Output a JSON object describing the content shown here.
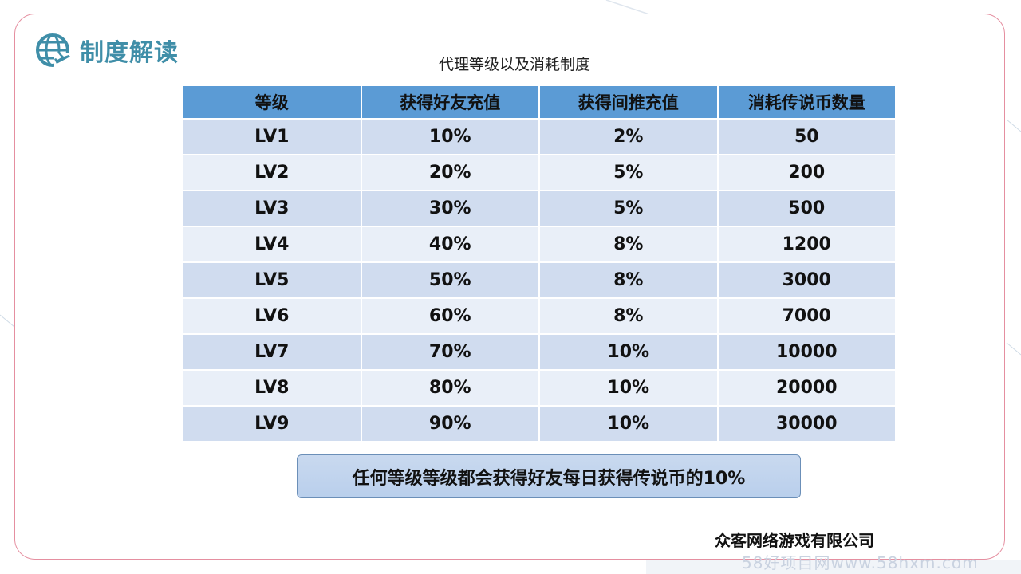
{
  "header": {
    "section_title": "制度解读",
    "icon": "globe-plane-icon"
  },
  "table": {
    "caption": "代理等级以及消耗制度",
    "headers": [
      "等级",
      "获得好友充值",
      "获得间推充值",
      "消耗传说币数量"
    ],
    "rows": [
      [
        "LV1",
        "10%",
        "2%",
        "50"
      ],
      [
        "LV2",
        "20%",
        "5%",
        "200"
      ],
      [
        "LV3",
        "30%",
        "5%",
        "500"
      ],
      [
        "LV4",
        "40%",
        "8%",
        "1200"
      ],
      [
        "LV5",
        "50%",
        "8%",
        "3000"
      ],
      [
        "LV6",
        "60%",
        "8%",
        "7000"
      ],
      [
        "LV7",
        "70%",
        "10%",
        "10000"
      ],
      [
        "LV8",
        "80%",
        "10%",
        "20000"
      ],
      [
        "LV9",
        "90%",
        "10%",
        "30000"
      ]
    ]
  },
  "note": "任何等级等级都会获得好友每日获得传说币的10%",
  "footer": {
    "company": "众客网络游戏有限公司",
    "watermark": "58好项目网www.58hxm.com"
  },
  "colors": {
    "accent": "#3f8ea8",
    "frame_border": "#e58fa0",
    "table_header": "#5b9bd5",
    "row_odd": "#d0dcef",
    "row_even": "#e9eff8"
  }
}
